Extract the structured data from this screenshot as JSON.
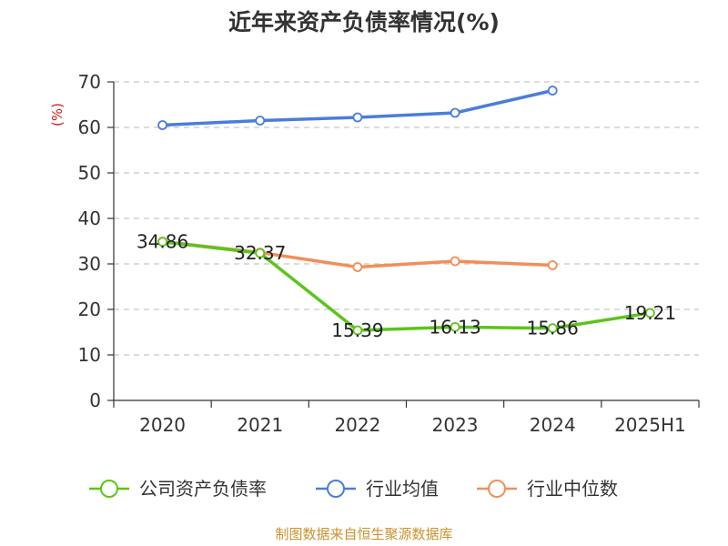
{
  "chart_data": {
    "type": "line",
    "title": "近年来资产负债率情况(%)",
    "ylabel": "(%)",
    "xlabel": "",
    "ylim": [
      0,
      70
    ],
    "yticks": [
      0,
      10,
      20,
      30,
      40,
      50,
      60,
      70
    ],
    "categories": [
      "2020",
      "2021",
      "2022",
      "2023",
      "2024",
      "2025H1"
    ],
    "grid": true,
    "legend_position": "bottom",
    "series": [
      {
        "name": "公司资产负债率",
        "color": "#5cc41a",
        "values": [
          34.86,
          32.37,
          15.39,
          16.13,
          15.86,
          19.21
        ],
        "labels": [
          "34.86",
          "32.37",
          "15.39",
          "16.13",
          "15.86",
          "19.21"
        ]
      },
      {
        "name": "行业均值",
        "color": "#4a7ed9",
        "values": [
          60.5,
          61.5,
          62.2,
          63.2,
          68.1,
          null
        ]
      },
      {
        "name": "行业中位数",
        "color": "#f08f5a",
        "values": [
          34.9,
          32.5,
          29.3,
          30.6,
          29.7,
          null
        ]
      }
    ]
  },
  "colors": {
    "unit_label": "#d01c1c",
    "source": "#c8922e"
  },
  "source": "制图数据来自恒生聚源数据库"
}
